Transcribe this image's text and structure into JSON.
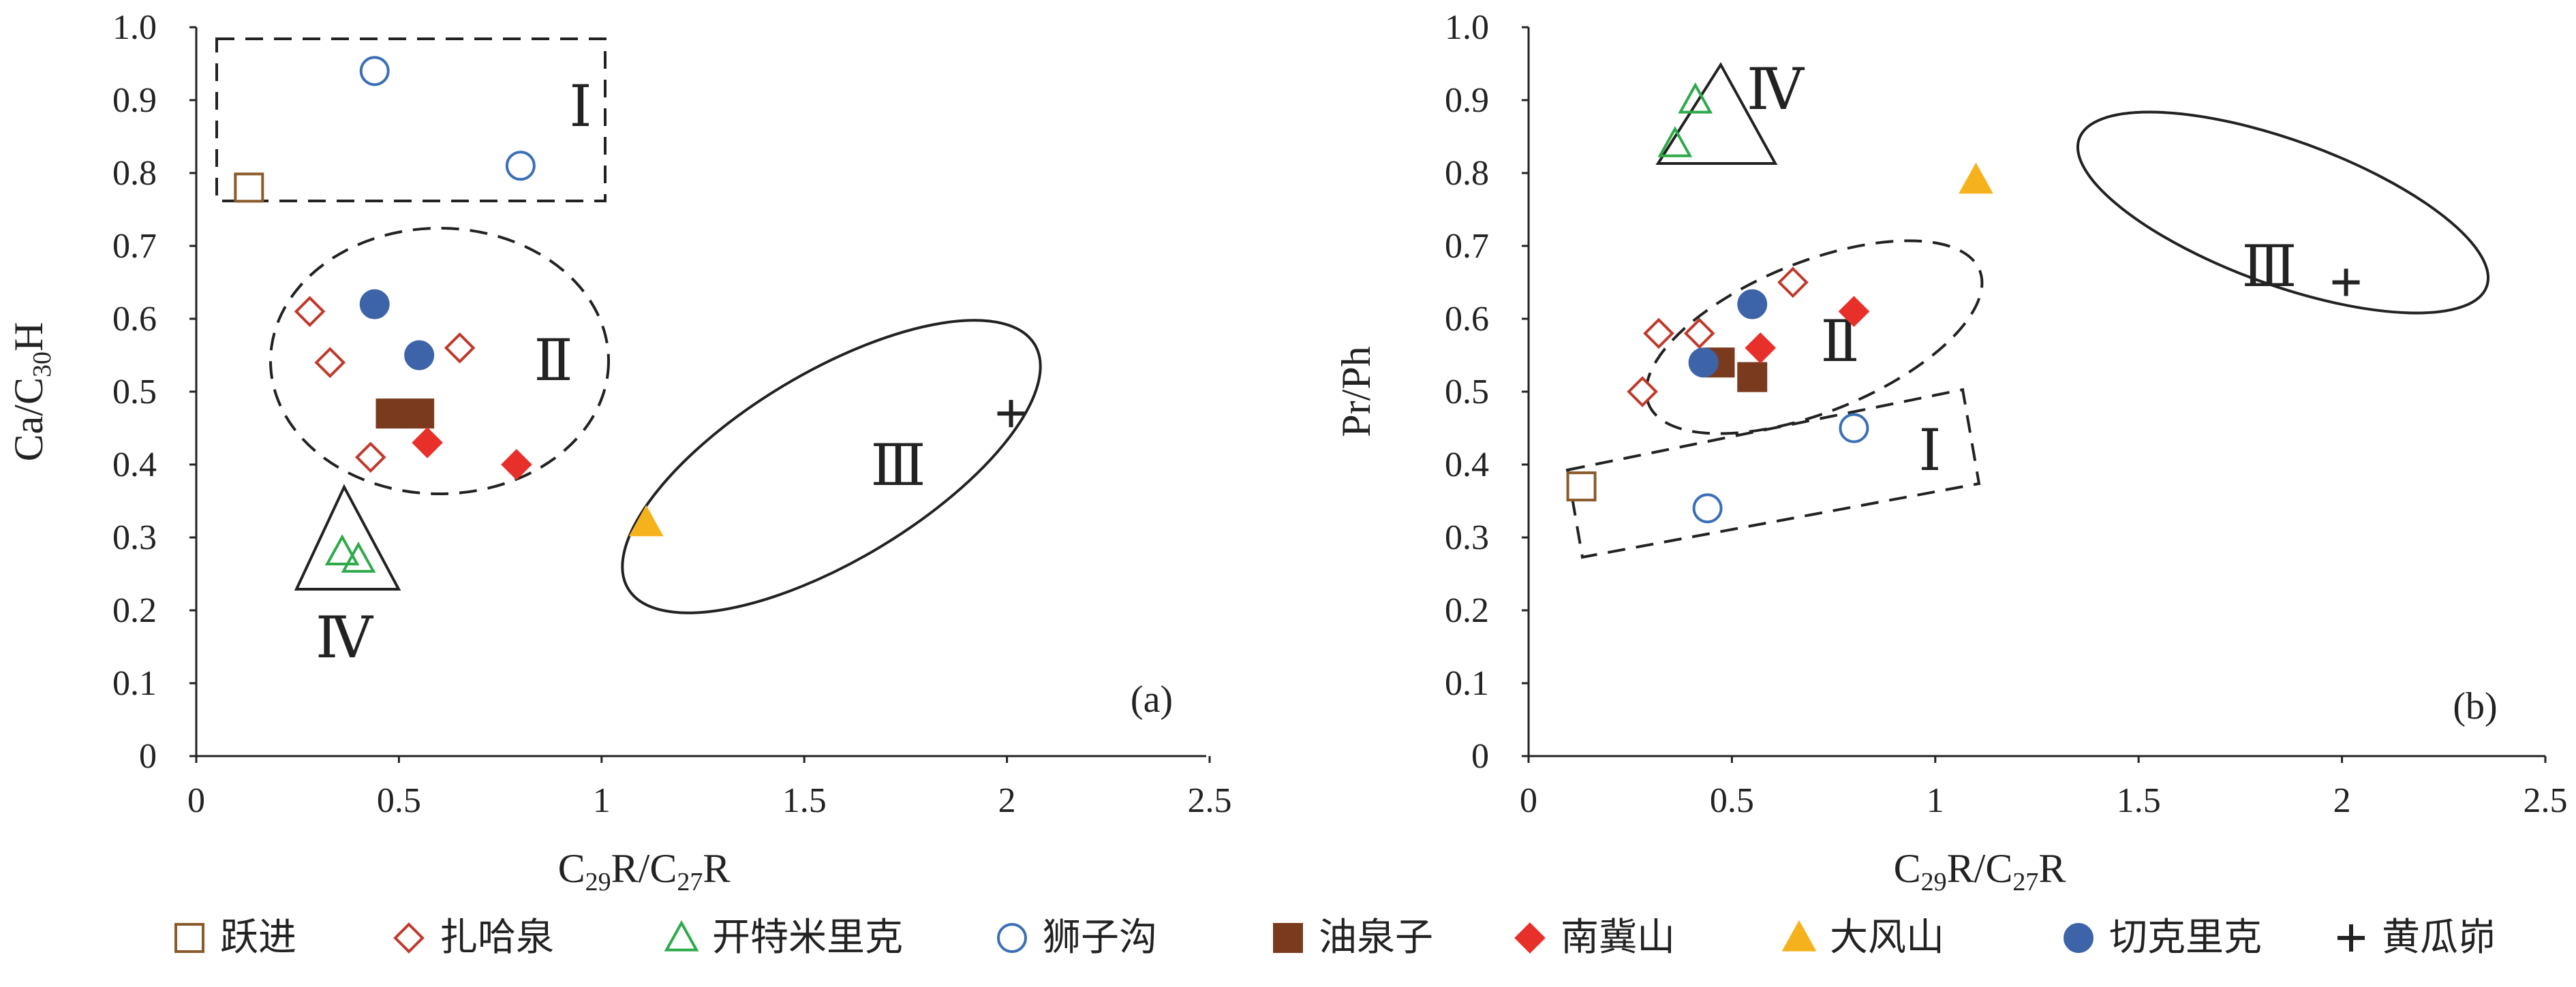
{
  "colors": {
    "yuejin": "#8a5a2b",
    "zhahaquan": "#c0392b",
    "kaitemilike": "#2eaa4a",
    "shizigou": "#3a6fb7",
    "youquanzi": "#7a3a1e",
    "nanjishan": "#e8302a",
    "dafengshan": "#f5b21d",
    "qiekelike": "#3d63a8",
    "huangguafan": "#222222"
  },
  "legend": [
    {
      "key": "yuejin",
      "label": "跃进",
      "marker": "square-open"
    },
    {
      "key": "zhahaquan",
      "label": "扎哈泉",
      "marker": "diamond-open"
    },
    {
      "key": "kaitemilike",
      "label": "开特米里克",
      "marker": "triangle-open"
    },
    {
      "key": "shizigou",
      "label": "狮子沟",
      "marker": "circle-open"
    },
    {
      "key": "youquanzi",
      "label": "油泉子",
      "marker": "square-filled"
    },
    {
      "key": "nanjishan",
      "label": "南冀山",
      "marker": "diamond-filled"
    },
    {
      "key": "dafengshan",
      "label": "大风山",
      "marker": "triangle-filled"
    },
    {
      "key": "qiekelike",
      "label": "切克里克",
      "marker": "circle-filled"
    },
    {
      "key": "huangguafan",
      "label": "黄瓜峁",
      "marker": "plus"
    }
  ],
  "chart_data": [
    {
      "type": "scatter",
      "panel_label": "(a)",
      "xlabel": "C29R/C27R",
      "ylabel": "Ca/C30H",
      "xlim": [
        0,
        2.5
      ],
      "ylim": [
        0,
        1.0
      ],
      "xticks": [
        "0",
        "0.5",
        "1",
        "1.5",
        "2",
        "2.5"
      ],
      "yticks": [
        "0",
        "0.1",
        "0.2",
        "0.3",
        "0.4",
        "0.5",
        "0.6",
        "0.7",
        "0.8",
        "0.9",
        "1.0"
      ],
      "series": [
        {
          "name": "跃进",
          "points": [
            [
              0.13,
              0.78
            ]
          ]
        },
        {
          "name": "扎哈泉",
          "points": [
            [
              0.28,
              0.61
            ],
            [
              0.33,
              0.54
            ],
            [
              0.43,
              0.41
            ],
            [
              0.65,
              0.56
            ]
          ]
        },
        {
          "name": "开特米里克",
          "points": [
            [
              0.36,
              0.28
            ],
            [
              0.4,
              0.27
            ]
          ]
        },
        {
          "name": "狮子沟",
          "points": [
            [
              0.44,
              0.94
            ],
            [
              0.8,
              0.81
            ]
          ]
        },
        {
          "name": "油泉子",
          "points": [
            [
              0.48,
              0.47
            ],
            [
              0.55,
              0.47
            ]
          ]
        },
        {
          "name": "南冀山",
          "points": [
            [
              0.57,
              0.43
            ],
            [
              0.79,
              0.4
            ]
          ]
        },
        {
          "name": "大风山",
          "points": [
            [
              1.11,
              0.32
            ]
          ]
        },
        {
          "name": "切克里克",
          "points": [
            [
              0.44,
              0.62
            ],
            [
              0.55,
              0.55
            ]
          ]
        },
        {
          "name": "黄瓜峁",
          "points": [
            [
              2.01,
              0.47
            ]
          ]
        }
      ],
      "annotations": [
        "Ⅰ",
        "Ⅱ",
        "Ⅲ",
        "Ⅳ"
      ]
    },
    {
      "type": "scatter",
      "panel_label": "(b)",
      "xlabel": "C29R/C27R",
      "ylabel": "Pr/Ph",
      "xlim": [
        0,
        2.5
      ],
      "ylim": [
        0,
        1.0
      ],
      "xticks": [
        "0",
        "0.5",
        "1",
        "1.5",
        "2",
        "2.5"
      ],
      "yticks": [
        "0",
        "0.1",
        "0.2",
        "0.3",
        "0.4",
        "0.5",
        "0.6",
        "0.7",
        "0.8",
        "0.9",
        "1.0"
      ],
      "series": [
        {
          "name": "跃进",
          "points": [
            [
              0.13,
              0.37
            ]
          ]
        },
        {
          "name": "扎哈泉",
          "points": [
            [
              0.28,
              0.5
            ],
            [
              0.32,
              0.58
            ],
            [
              0.42,
              0.58
            ],
            [
              0.65,
              0.65
            ]
          ]
        },
        {
          "name": "开特米里克",
          "points": [
            [
              0.36,
              0.84
            ],
            [
              0.41,
              0.9
            ]
          ]
        },
        {
          "name": "狮子沟",
          "points": [
            [
              0.44,
              0.34
            ],
            [
              0.8,
              0.45
            ]
          ]
        },
        {
          "name": "油泉子",
          "points": [
            [
              0.47,
              0.54
            ],
            [
              0.55,
              0.52
            ]
          ]
        },
        {
          "name": "南冀山",
          "points": [
            [
              0.57,
              0.56
            ],
            [
              0.8,
              0.61
            ]
          ]
        },
        {
          "name": "大风山",
          "points": [
            [
              1.1,
              0.79
            ]
          ]
        },
        {
          "name": "切克里克",
          "points": [
            [
              0.43,
              0.54
            ],
            [
              0.55,
              0.62
            ]
          ]
        },
        {
          "name": "黄瓜峁",
          "points": [
            [
              2.01,
              0.65
            ]
          ]
        }
      ],
      "annotations": [
        "Ⅰ",
        "Ⅱ",
        "Ⅲ",
        "Ⅳ"
      ]
    }
  ]
}
